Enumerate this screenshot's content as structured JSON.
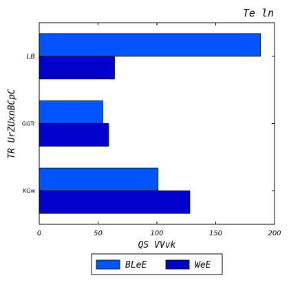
{
  "chart_data": {
    "type": "bar",
    "orientation": "horizontal",
    "title": "Te ln",
    "xlabel": "QS VVvk",
    "ylabel": "TR UrZUxnBCpC",
    "categories": [
      "LB",
      "GGTr",
      "KGw"
    ],
    "series": [
      {
        "name": "BLeE",
        "color": "#0055ff",
        "values": [
          188,
          54,
          101
        ]
      },
      {
        "name": "WeE",
        "color": "#0000cc",
        "values": [
          64,
          59,
          128
        ]
      }
    ],
    "xlim": [
      0,
      200
    ],
    "xticks": [
      0,
      50,
      100,
      150,
      200
    ],
    "grid": false,
    "legend": "bottom-center"
  }
}
